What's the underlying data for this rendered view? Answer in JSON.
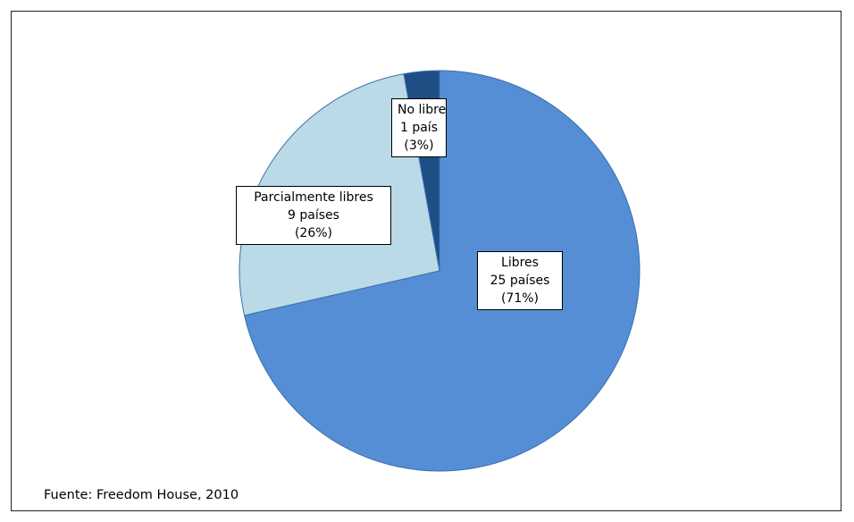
{
  "chart_data": {
    "type": "pie",
    "slices": [
      {
        "name": "Libres",
        "count_text": "25 países",
        "pct_text": "(71%)",
        "value": 25,
        "color": "#558ED5"
      },
      {
        "name": "Parcialmente libres",
        "count_text": "9 países",
        "pct_text": "(26%)",
        "value": 9,
        "color": "#B9DAE6"
      },
      {
        "name": "No libre",
        "count_text": "1 país",
        "pct_text": "(3%)",
        "value": 1,
        "color": "#1F4E85"
      }
    ],
    "source": "Fuente: Freedom House, 2010"
  }
}
